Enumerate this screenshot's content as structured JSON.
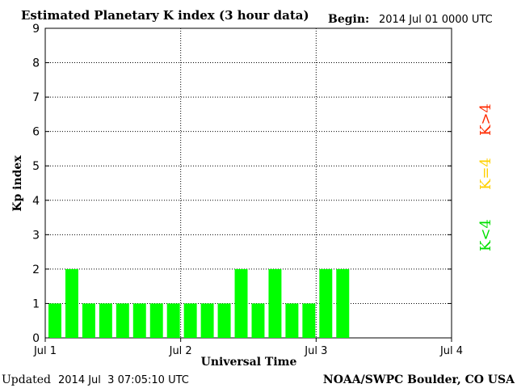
{
  "header": {
    "title": "Estimated Planetary K index (3 hour data)",
    "begin_label": "Begin:",
    "begin_value": "2014 Jul 01 0000 UTC"
  },
  "footer": {
    "updated_label": "Updated",
    "updated_value": "2014 Jul  3 07:05:10 UTC",
    "source": "NOAA/SWPC Boulder, CO USA"
  },
  "legend": [
    {
      "label": "K>4",
      "color": "#ff2a00"
    },
    {
      "label": "K=4",
      "color": "#ffd000"
    },
    {
      "label": "K<4",
      "color": "#00e000"
    }
  ],
  "chart_data": {
    "type": "bar",
    "title": "Estimated Planetary K index (3 hour data)",
    "xlabel": "Universal Time",
    "ylabel": "Kp index",
    "ylim": [
      0,
      9
    ],
    "yticks": [
      0,
      1,
      2,
      3,
      4,
      5,
      6,
      7,
      8,
      9
    ],
    "xticks": [
      "Jul 1",
      "Jul 2",
      "Jul 3",
      "Jul 4"
    ],
    "grid": true,
    "bar_color": "#00ff00",
    "values": [
      1,
      2,
      1,
      1,
      1,
      1,
      1,
      1,
      1,
      1,
      1,
      2,
      1,
      2,
      1,
      1,
      2,
      2
    ]
  }
}
